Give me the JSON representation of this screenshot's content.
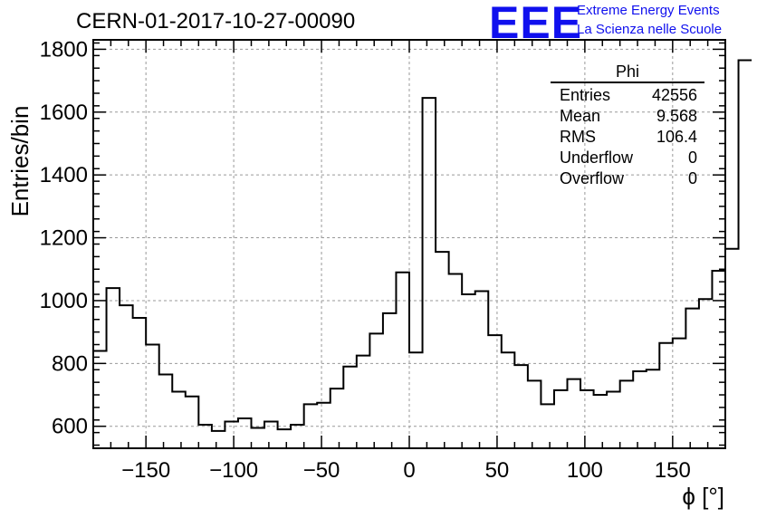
{
  "header": {
    "title": "CERN-01-2017-10-27-00090",
    "logo_text": "EEE",
    "logo_line1": "Extreme Energy Events",
    "logo_line2": "La Scienza nelle Scuole"
  },
  "stats": {
    "name": "Phi",
    "rows": [
      {
        "label": "Entries",
        "value": "42556"
      },
      {
        "label": "Mean",
        "value": "9.568"
      },
      {
        "label": "RMS",
        "value": "106.4"
      },
      {
        "label": "Underflow",
        "value": "0"
      },
      {
        "label": "Overflow",
        "value": "0"
      }
    ]
  },
  "colors": {
    "line": "#000000",
    "grid": "#999999",
    "brand": "#1010ee"
  },
  "chart_data": {
    "type": "histogram",
    "title": "CERN-01-2017-10-27-00090",
    "xlabel": "ϕ [°]",
    "ylabel": "Entries/bin",
    "xlim": [
      -180,
      180
    ],
    "ylim": [
      530,
      1830
    ],
    "grid": true,
    "bin_width": 7.5,
    "x_ticks": [
      -150,
      -100,
      -50,
      0,
      50,
      100,
      150
    ],
    "x_tick_labels": [
      "−150",
      "−100",
      "−50",
      "0",
      "50",
      "100",
      "150"
    ],
    "y_ticks": [
      600,
      800,
      1000,
      1200,
      1400,
      1600,
      1800
    ],
    "y_tick_labels": [
      "600",
      "800",
      "1000",
      "1200",
      "1400",
      "1600",
      "1800"
    ],
    "values": [
      840,
      1040,
      985,
      945,
      860,
      765,
      710,
      695,
      605,
      585,
      615,
      625,
      595,
      615,
      590,
      605,
      670,
      675,
      720,
      790,
      825,
      895,
      960,
      1090,
      835,
      1645,
      1155,
      1085,
      1020,
      1030,
      890,
      835,
      795,
      745,
      670,
      715,
      750,
      715,
      700,
      710,
      745,
      775,
      780,
      865,
      880,
      975,
      1005,
      1095,
      1165,
      1765
    ]
  }
}
